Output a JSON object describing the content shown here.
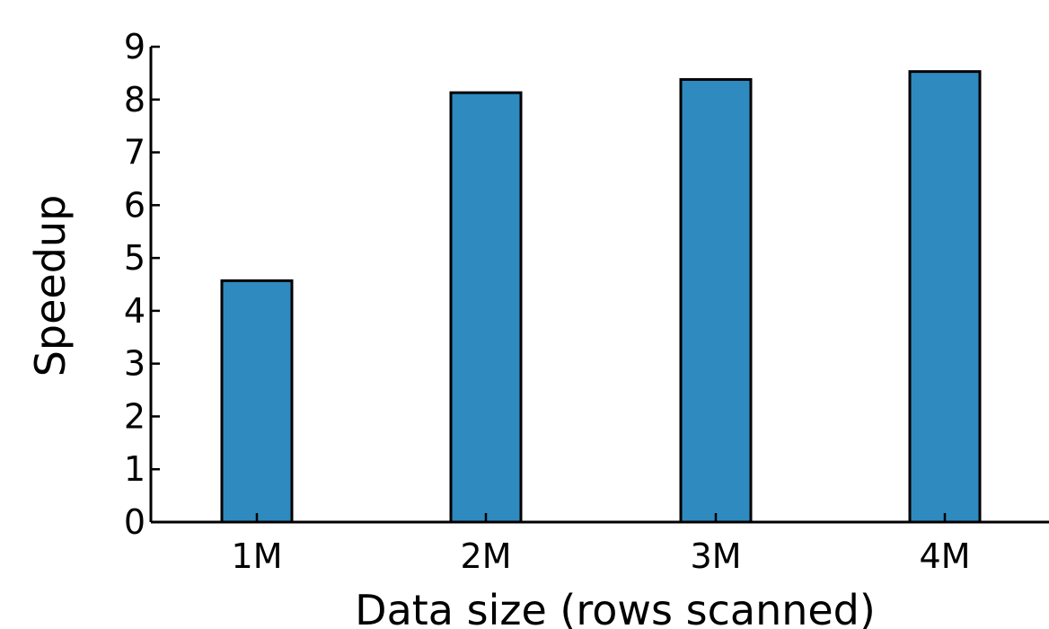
{
  "chart_data": {
    "type": "bar",
    "categories": [
      "1M",
      "2M",
      "3M",
      "4M"
    ],
    "values": [
      4.57,
      8.13,
      8.38,
      8.53
    ],
    "xlabel": "Data size (rows scanned)",
    "ylabel": "Speedup",
    "ylim": [
      0,
      9
    ],
    "yticks": [
      0,
      1,
      2,
      3,
      4,
      5,
      6,
      7,
      8,
      9
    ],
    "grid": false,
    "bar_color": "#2e8abf",
    "bar_edge_color": "#000000"
  }
}
